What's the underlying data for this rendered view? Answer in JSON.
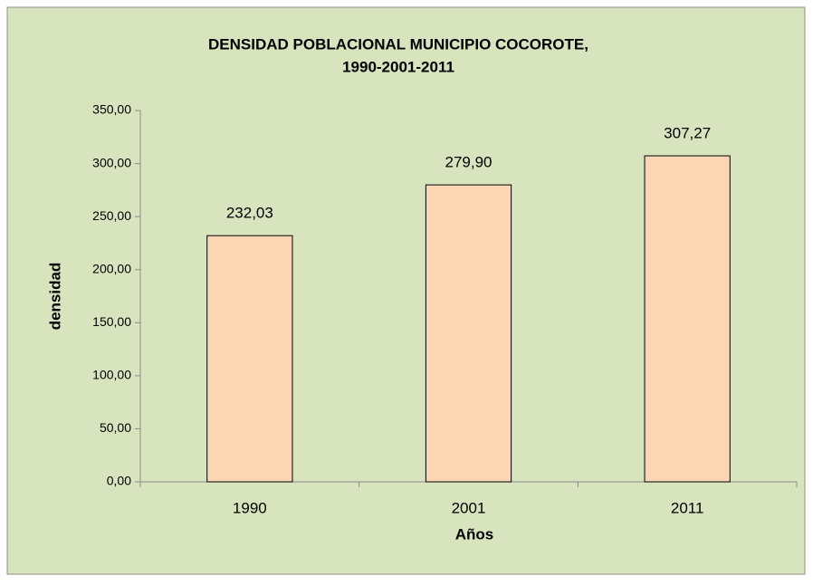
{
  "chart_data": {
    "type": "bar",
    "title": [
      "DENSIDAD POBLACIONAL  MUNICIPIO COCOROTE,",
      "1990-2001-2011"
    ],
    "xlabel": "Años",
    "ylabel": "densidad",
    "categories": [
      "1990",
      "2001",
      "2011"
    ],
    "values": [
      232.03,
      279.9,
      307.27
    ],
    "value_labels": [
      "232,03",
      "279,90",
      "307,27"
    ],
    "color": "#fcd5b5",
    "ylim": [
      0,
      350
    ],
    "yticks": [
      {
        "value": 0,
        "label": "0,00"
      },
      {
        "value": 50,
        "label": "50,00"
      },
      {
        "value": 100,
        "label": "100,00"
      },
      {
        "value": 150,
        "label": "150,00"
      },
      {
        "value": 200,
        "label": "200,00"
      },
      {
        "value": 250,
        "label": "250,00"
      },
      {
        "value": 300,
        "label": "300,00"
      },
      {
        "value": 350,
        "label": "350,00"
      }
    ],
    "grid": false
  }
}
